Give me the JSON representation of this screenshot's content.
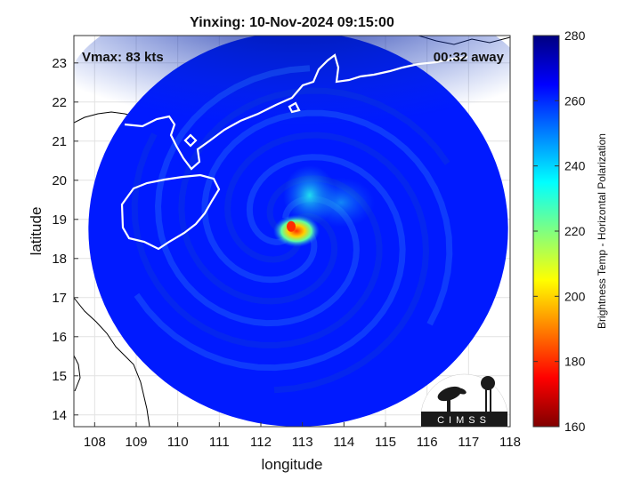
{
  "chart_data": {
    "type": "heatmap",
    "title": "Yinxing: 10-Nov-2024 09:15:00",
    "xlabel": "longitude",
    "ylabel": "latitude",
    "xlim": [
      107.5,
      118
    ],
    "ylim": [
      13.7,
      23.7
    ],
    "x_ticks": [
      "108",
      "109",
      "110",
      "111",
      "112",
      "113",
      "114",
      "115",
      "116",
      "117",
      "118"
    ],
    "y_ticks": [
      "14",
      "15",
      "16",
      "17",
      "18",
      "19",
      "20",
      "21",
      "22",
      "23"
    ],
    "grid": true,
    "annotations": {
      "vmax": "Vmax: 83 kts",
      "away": "00:32 away"
    },
    "storm_center": {
      "lon": 112.75,
      "lat": 18.75
    },
    "swath_center": {
      "lon": 112.9,
      "lat": 18.75
    },
    "swath_radius_deg": 5.05,
    "colorbar": {
      "label": "Brightness Temp - Horizontal Polarization",
      "min": 160,
      "max": 280,
      "ticks": [
        "280",
        "260",
        "240",
        "220",
        "200",
        "180",
        "160"
      ],
      "colors": [
        "#800000",
        "#ff0000",
        "#ff8000",
        "#ffff00",
        "#80ff80",
        "#00ffff",
        "#0080ff",
        "#0000ff",
        "#000080"
      ]
    },
    "field_colors": {
      "background_brightness_temp": 262,
      "north_brightness_temp": 276,
      "eyewall_brightness_temp": 180
    },
    "logo": {
      "text": "CIMSS"
    }
  }
}
